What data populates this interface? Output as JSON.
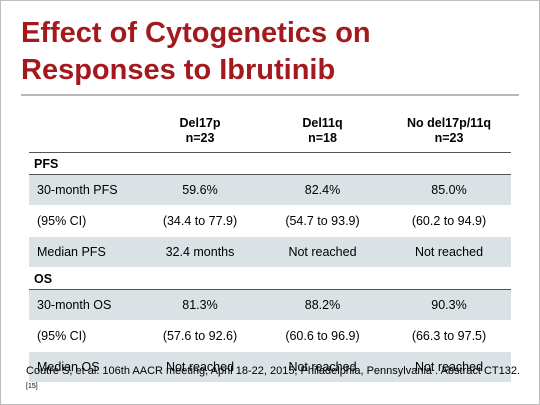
{
  "slide": {
    "title": "Effect of Cytogenetics on Responses to Ibrutinib",
    "columns": [
      {
        "name": "",
        "n": ""
      },
      {
        "name": "Del17p",
        "n": "n=23"
      },
      {
        "name": "Del11q",
        "n": "n=18"
      },
      {
        "name": "No del17p/11q",
        "n": "n=23"
      }
    ],
    "sections": [
      {
        "label": "PFS",
        "rows": [
          {
            "label": "30-month PFS",
            "values": [
              "59.6%",
              "82.4%",
              "85.0%"
            ]
          },
          {
            "label": "(95% CI)",
            "values": [
              "(34.4 to 77.9)",
              "(54.7 to 93.9)",
              "(60.2 to 94.9)"
            ]
          },
          {
            "label": "Median PFS",
            "values": [
              "32.4 months",
              "Not reached",
              "Not reached"
            ]
          }
        ]
      },
      {
        "label": "OS",
        "rows": [
          {
            "label": "30-month OS",
            "values": [
              "81.3%",
              "88.2%",
              "90.3%"
            ]
          },
          {
            "label": "(95% CI)",
            "values": [
              "(57.6 to 92.6)",
              "(60.6 to 96.9)",
              "(66.3 to 97.5)"
            ]
          },
          {
            "label": "Median OS",
            "values": [
              "Not reached",
              "Not reached",
              "Not reached"
            ]
          }
        ]
      }
    ],
    "footnote": {
      "text": "Coutre S, et al. 106th AACR meeting, April 18-22, 2015, Philadelphia, Pennsylvania . Abstract CT132.",
      "ref": "[15]"
    }
  },
  "colors": {
    "title": "#a4191e",
    "row_shade": "#dbe2e6",
    "rule": "#b8b8b8"
  }
}
